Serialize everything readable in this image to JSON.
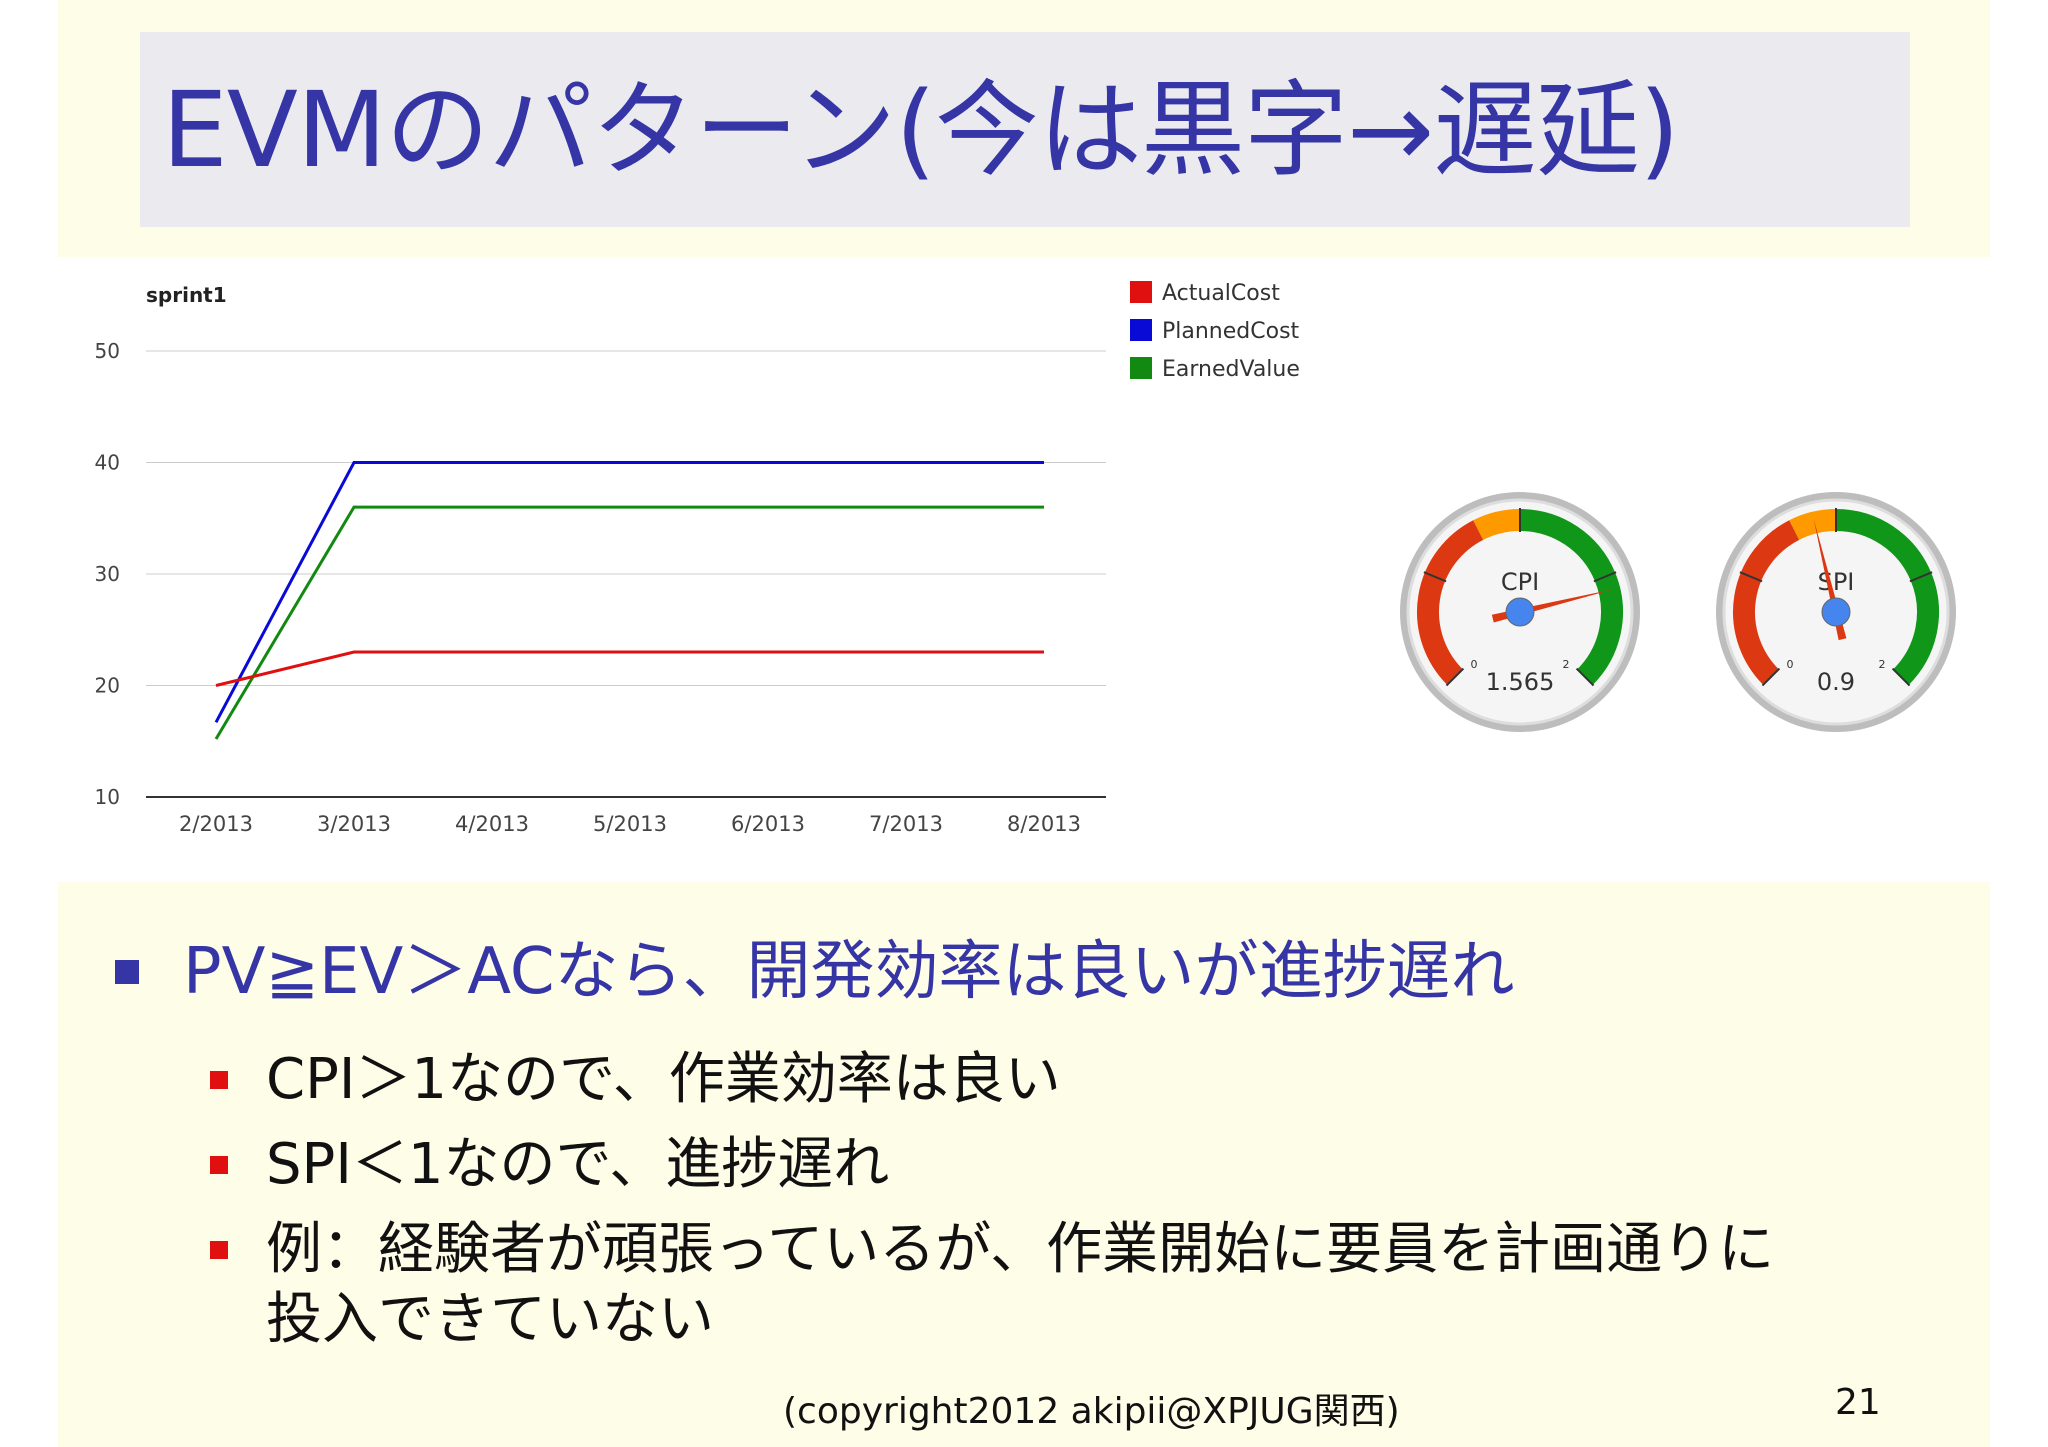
{
  "slide": {
    "title": "EVMのパターン(今は黒字→遅延)",
    "bullet_main": "PV≧EV＞ACなら、開発効率は良いが進捗遅れ",
    "sub_bullets": [
      "CPI＞1なので、作業効率は良い",
      "SPI＜1なので、進捗遅れ",
      "例：経験者が頑張っているが、作業開始に要員を計画通りに",
      "投入できていない"
    ],
    "footer": "(copyright2012 akipii@XPJUG関西)",
    "page_number": "21"
  },
  "colors": {
    "title_text": "#3535a6",
    "band_background": "#fefde8",
    "title_box": "#ebebef",
    "actual_cost": "#e01010",
    "planned_cost": "#0a0ad6",
    "earned_value": "#128a12"
  },
  "chart_data": [
    {
      "type": "line",
      "title": "sprint1",
      "x": [
        "2/2013",
        "3/2013",
        "4/2013",
        "5/2013",
        "6/2013",
        "7/2013",
        "8/2013"
      ],
      "ylim": [
        10,
        50
      ],
      "yticks": [
        10,
        20,
        30,
        40,
        50
      ],
      "grid": true,
      "legend": "right",
      "series": [
        {
          "name": "ActualCost",
          "color": "#e01010",
          "values": [
            20,
            23,
            23,
            23,
            23,
            23,
            23
          ]
        },
        {
          "name": "PlannedCost",
          "color": "#0a0ad6",
          "values": [
            16.7,
            40,
            40,
            40,
            40,
            40,
            40
          ]
        },
        {
          "name": "EarnedValue",
          "color": "#128a12",
          "values": [
            15.2,
            36,
            36,
            36,
            36,
            36,
            36
          ]
        }
      ]
    },
    {
      "type": "gauge",
      "label": "CPI",
      "value": 1.565,
      "value_text": "1.565",
      "min": 0,
      "max": 2,
      "min_label": "0",
      "max_label": "2"
    },
    {
      "type": "gauge",
      "label": "SPI",
      "value": 0.9,
      "value_text": "0.9",
      "min": 0,
      "max": 2,
      "min_label": "0",
      "max_label": "2"
    }
  ]
}
